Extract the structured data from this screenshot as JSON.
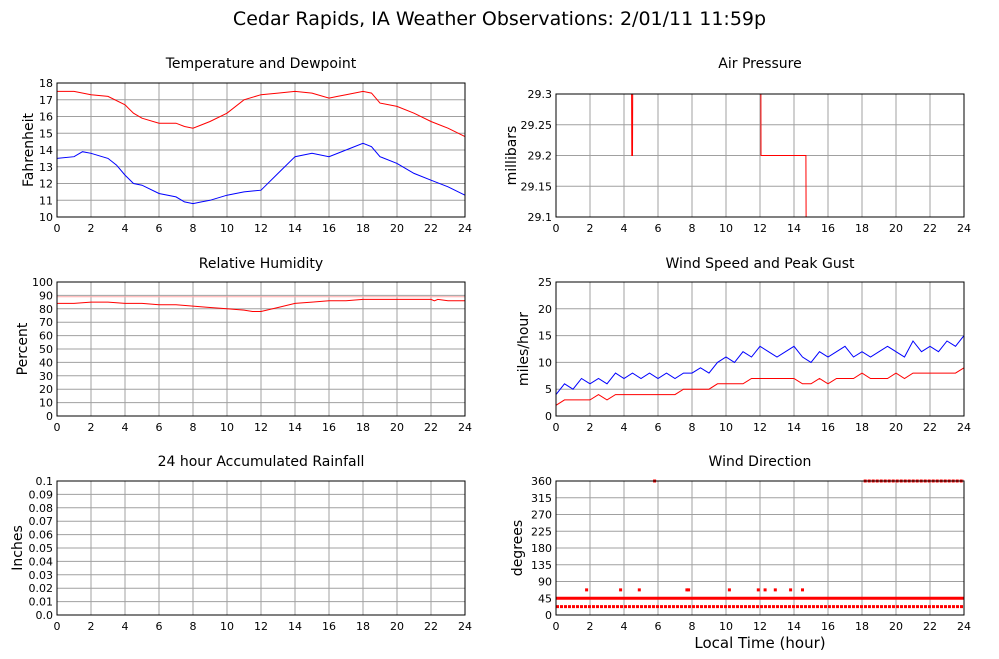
{
  "title": "Cedar Rapids, IA Weather Observations: 2/01/11 11:59p",
  "bottom_xlabel": "Local Time (hour)",
  "colors": {
    "red": "#ff0000",
    "blue": "#0000ff",
    "grid": "#a0a0a0"
  },
  "chart_data": [
    {
      "id": "temp",
      "type": "line",
      "title": "Temperature and Dewpoint",
      "ylabel": "Fahrenheit",
      "xlabel": "",
      "xlim": [
        0,
        24
      ],
      "ylim": [
        10,
        18
      ],
      "xticks": [
        "0",
        "2",
        "4",
        "6",
        "8",
        "10",
        "12",
        "14",
        "16",
        "18",
        "20",
        "22",
        "24"
      ],
      "yticks": [
        "10",
        "11",
        "12",
        "13",
        "14",
        "15",
        "16",
        "17",
        "18"
      ],
      "series": [
        {
          "color": "#ff0000",
          "x": [
            0,
            1,
            2,
            3,
            4,
            4.5,
            5,
            6,
            7,
            7.5,
            8,
            8.5,
            9,
            10,
            11,
            12,
            13,
            14,
            15,
            16,
            16.5,
            17,
            18,
            18.5,
            19,
            20,
            21,
            22,
            23,
            24
          ],
          "y": [
            17.5,
            17.5,
            17.3,
            17.2,
            16.7,
            16.2,
            15.9,
            15.6,
            15.6,
            15.4,
            15.3,
            15.5,
            15.7,
            16.2,
            17,
            17.3,
            17.4,
            17.5,
            17.4,
            17.1,
            17.2,
            17.3,
            17.5,
            17.4,
            16.8,
            16.6,
            16.2,
            15.7,
            15.3,
            14.8
          ]
        },
        {
          "color": "#0000ff",
          "x": [
            0,
            1,
            1.5,
            2,
            3,
            3.5,
            4,
            4.5,
            5,
            6,
            7,
            7.5,
            8,
            8.5,
            9,
            10,
            11,
            12,
            13,
            14,
            15,
            16,
            17,
            18,
            18.5,
            19,
            20,
            21,
            22,
            23,
            24
          ],
          "y": [
            13.5,
            13.6,
            13.9,
            13.8,
            13.5,
            13.1,
            12.5,
            12,
            11.9,
            11.4,
            11.2,
            10.9,
            10.8,
            10.9,
            11,
            11.3,
            11.5,
            11.6,
            12.6,
            13.6,
            13.8,
            13.6,
            14,
            14.4,
            14.2,
            13.6,
            13.2,
            12.6,
            12.2,
            11.8,
            11.3
          ]
        }
      ]
    },
    {
      "id": "pressure",
      "type": "line",
      "title": "Air Pressure",
      "ylabel": "millibars",
      "xlabel": "",
      "xlim": [
        0,
        24
      ],
      "ylim": [
        29.1,
        29.3
      ],
      "xticks": [
        "0",
        "2",
        "4",
        "6",
        "8",
        "10",
        "12",
        "14",
        "16",
        "18",
        "20",
        "22",
        "24"
      ],
      "yticks": [
        "29.1",
        "29.15",
        "29.2",
        "29.25",
        "29.3"
      ],
      "series": [
        {
          "color": "#ff0000",
          "x": [
            0,
            4.45,
            4.46,
            4.5,
            4.51,
            4.55,
            4.56,
            12.05,
            12.06,
            14.7,
            14.71,
            24
          ],
          "y": [
            29.3,
            29.3,
            29.2,
            29.2,
            29.3,
            29.3,
            29.3,
            29.3,
            29.2,
            29.2,
            29.1,
            29.1
          ]
        }
      ]
    },
    {
      "id": "humidity",
      "type": "line",
      "title": "Relative Humidity",
      "ylabel": "Percent",
      "xlabel": "",
      "xlim": [
        0,
        24
      ],
      "ylim": [
        0,
        100
      ],
      "xticks": [
        "0",
        "2",
        "4",
        "6",
        "8",
        "10",
        "12",
        "14",
        "16",
        "18",
        "20",
        "22",
        "24"
      ],
      "yticks": [
        "0",
        "10",
        "20",
        "30",
        "40",
        "50",
        "60",
        "70",
        "80",
        "90",
        "100"
      ],
      "series": [
        {
          "color": "#ff0000",
          "x": [
            0,
            1,
            2,
            3,
            4,
            5,
            6,
            7,
            8,
            9,
            10,
            11,
            11.5,
            12,
            13,
            14,
            15,
            16,
            17,
            18,
            19,
            20,
            21,
            22,
            22.2,
            22.4,
            23,
            24
          ],
          "y": [
            84,
            84,
            85,
            85,
            84,
            84,
            83,
            83,
            82,
            81,
            80,
            79,
            78,
            78,
            81,
            84,
            85,
            86,
            86,
            87,
            87,
            87,
            87,
            87,
            86,
            87,
            86,
            86
          ]
        },
        {
          "color": "#ffaaaa",
          "x": [
            0,
            24
          ],
          "y": [
            89,
            89
          ]
        }
      ]
    },
    {
      "id": "wind",
      "type": "line",
      "title": "Wind Speed and Peak Gust",
      "ylabel": "miles/hour",
      "xlabel": "",
      "xlim": [
        0,
        24
      ],
      "ylim": [
        0,
        25
      ],
      "xticks": [
        "0",
        "2",
        "4",
        "6",
        "8",
        "10",
        "12",
        "14",
        "16",
        "18",
        "20",
        "22",
        "24"
      ],
      "yticks": [
        "0",
        "5",
        "10",
        "15",
        "20",
        "25"
      ],
      "series": [
        {
          "color": "#0000ff",
          "x": [
            0,
            0.5,
            1,
            1.5,
            2,
            2.5,
            3,
            3.5,
            4,
            4.5,
            5,
            5.5,
            6,
            6.5,
            7,
            7.5,
            8,
            8.5,
            9,
            9.5,
            10,
            10.5,
            11,
            11.5,
            12,
            12.5,
            13,
            13.5,
            14,
            14.5,
            15,
            15.5,
            16,
            16.5,
            17,
            17.5,
            18,
            18.5,
            19,
            19.5,
            20,
            20.5,
            21,
            21.5,
            22,
            22.5,
            23,
            23.5,
            24
          ],
          "y": [
            4,
            6,
            5,
            7,
            6,
            7,
            6,
            8,
            7,
            8,
            7,
            8,
            7,
            8,
            7,
            8,
            8,
            9,
            8,
            10,
            11,
            10,
            12,
            11,
            13,
            12,
            11,
            12,
            13,
            11,
            10,
            12,
            11,
            12,
            13,
            11,
            12,
            11,
            12,
            13,
            12,
            11,
            14,
            12,
            13,
            12,
            14,
            13,
            15
          ]
        },
        {
          "color": "#ff0000",
          "x": [
            0,
            0.5,
            1,
            1.5,
            2,
            2.5,
            3,
            3.5,
            4,
            4.5,
            5,
            5.5,
            6,
            6.5,
            7,
            7.5,
            8,
            8.5,
            9,
            9.5,
            10,
            10.5,
            11,
            11.5,
            12,
            12.5,
            13,
            13.5,
            14,
            14.5,
            15,
            15.5,
            16,
            16.5,
            17,
            17.5,
            18,
            18.5,
            19,
            19.5,
            20,
            20.5,
            21,
            21.5,
            22,
            22.5,
            23,
            23.5,
            24
          ],
          "y": [
            2,
            3,
            3,
            3,
            3,
            4,
            3,
            4,
            4,
            4,
            4,
            4,
            4,
            4,
            4,
            5,
            5,
            5,
            5,
            6,
            6,
            6,
            6,
            7,
            7,
            7,
            7,
            7,
            7,
            6,
            6,
            7,
            6,
            7,
            7,
            7,
            8,
            7,
            7,
            7,
            8,
            7,
            8,
            8,
            8,
            8,
            8,
            8,
            9
          ]
        }
      ]
    },
    {
      "id": "rain",
      "type": "line",
      "title": "24 hour Accumulated Rainfall",
      "ylabel": "Inches",
      "xlabel": "",
      "xlim": [
        0,
        24
      ],
      "ylim": [
        0,
        0.1
      ],
      "xticks": [
        "0",
        "2",
        "4",
        "6",
        "8",
        "10",
        "12",
        "14",
        "16",
        "18",
        "20",
        "22",
        "24"
      ],
      "yticks": [
        "0.0",
        "0.01",
        "0.02",
        "0.03",
        "0.04",
        "0.05",
        "0.06",
        "0.07",
        "0.08",
        "0.09",
        "0.1"
      ],
      "series": [
        {
          "color": "#ff0000",
          "x": [
            0,
            24
          ],
          "y": [
            0,
            0
          ]
        }
      ]
    },
    {
      "id": "direction",
      "type": "scatter",
      "title": "Wind Direction",
      "ylabel": "degrees",
      "xlabel": "Local Time (hour)",
      "xlim": [
        0,
        24
      ],
      "ylim": [
        0,
        360
      ],
      "xticks": [
        "0",
        "2",
        "4",
        "6",
        "8",
        "10",
        "12",
        "14",
        "16",
        "18",
        "20",
        "22",
        "24"
      ],
      "yticks": [
        "0",
        "45",
        "90",
        "135",
        "180",
        "225",
        "270",
        "315",
        "360"
      ],
      "series": [
        {
          "color": "#ff0000",
          "kind": "band",
          "y": 45,
          "x": [
            0,
            24
          ]
        },
        {
          "color": "#ff0000",
          "kind": "band",
          "y": 22.5,
          "x": [
            0,
            24
          ]
        },
        {
          "color": "#ff0000",
          "kind": "band",
          "y": 360,
          "x": [
            18.1,
            24
          ]
        },
        {
          "color": "#ff0000",
          "kind": "points",
          "x": [
            1.8,
            3.8,
            4.9,
            7.7,
            7.8,
            10.2,
            11.9,
            12.3,
            12.9,
            13.8,
            14.5,
            5.8
          ],
          "y": [
            67.5,
            67.5,
            67.5,
            67.5,
            67.5,
            67.5,
            67.5,
            67.5,
            67.5,
            67.5,
            67.5,
            360
          ]
        }
      ]
    }
  ]
}
